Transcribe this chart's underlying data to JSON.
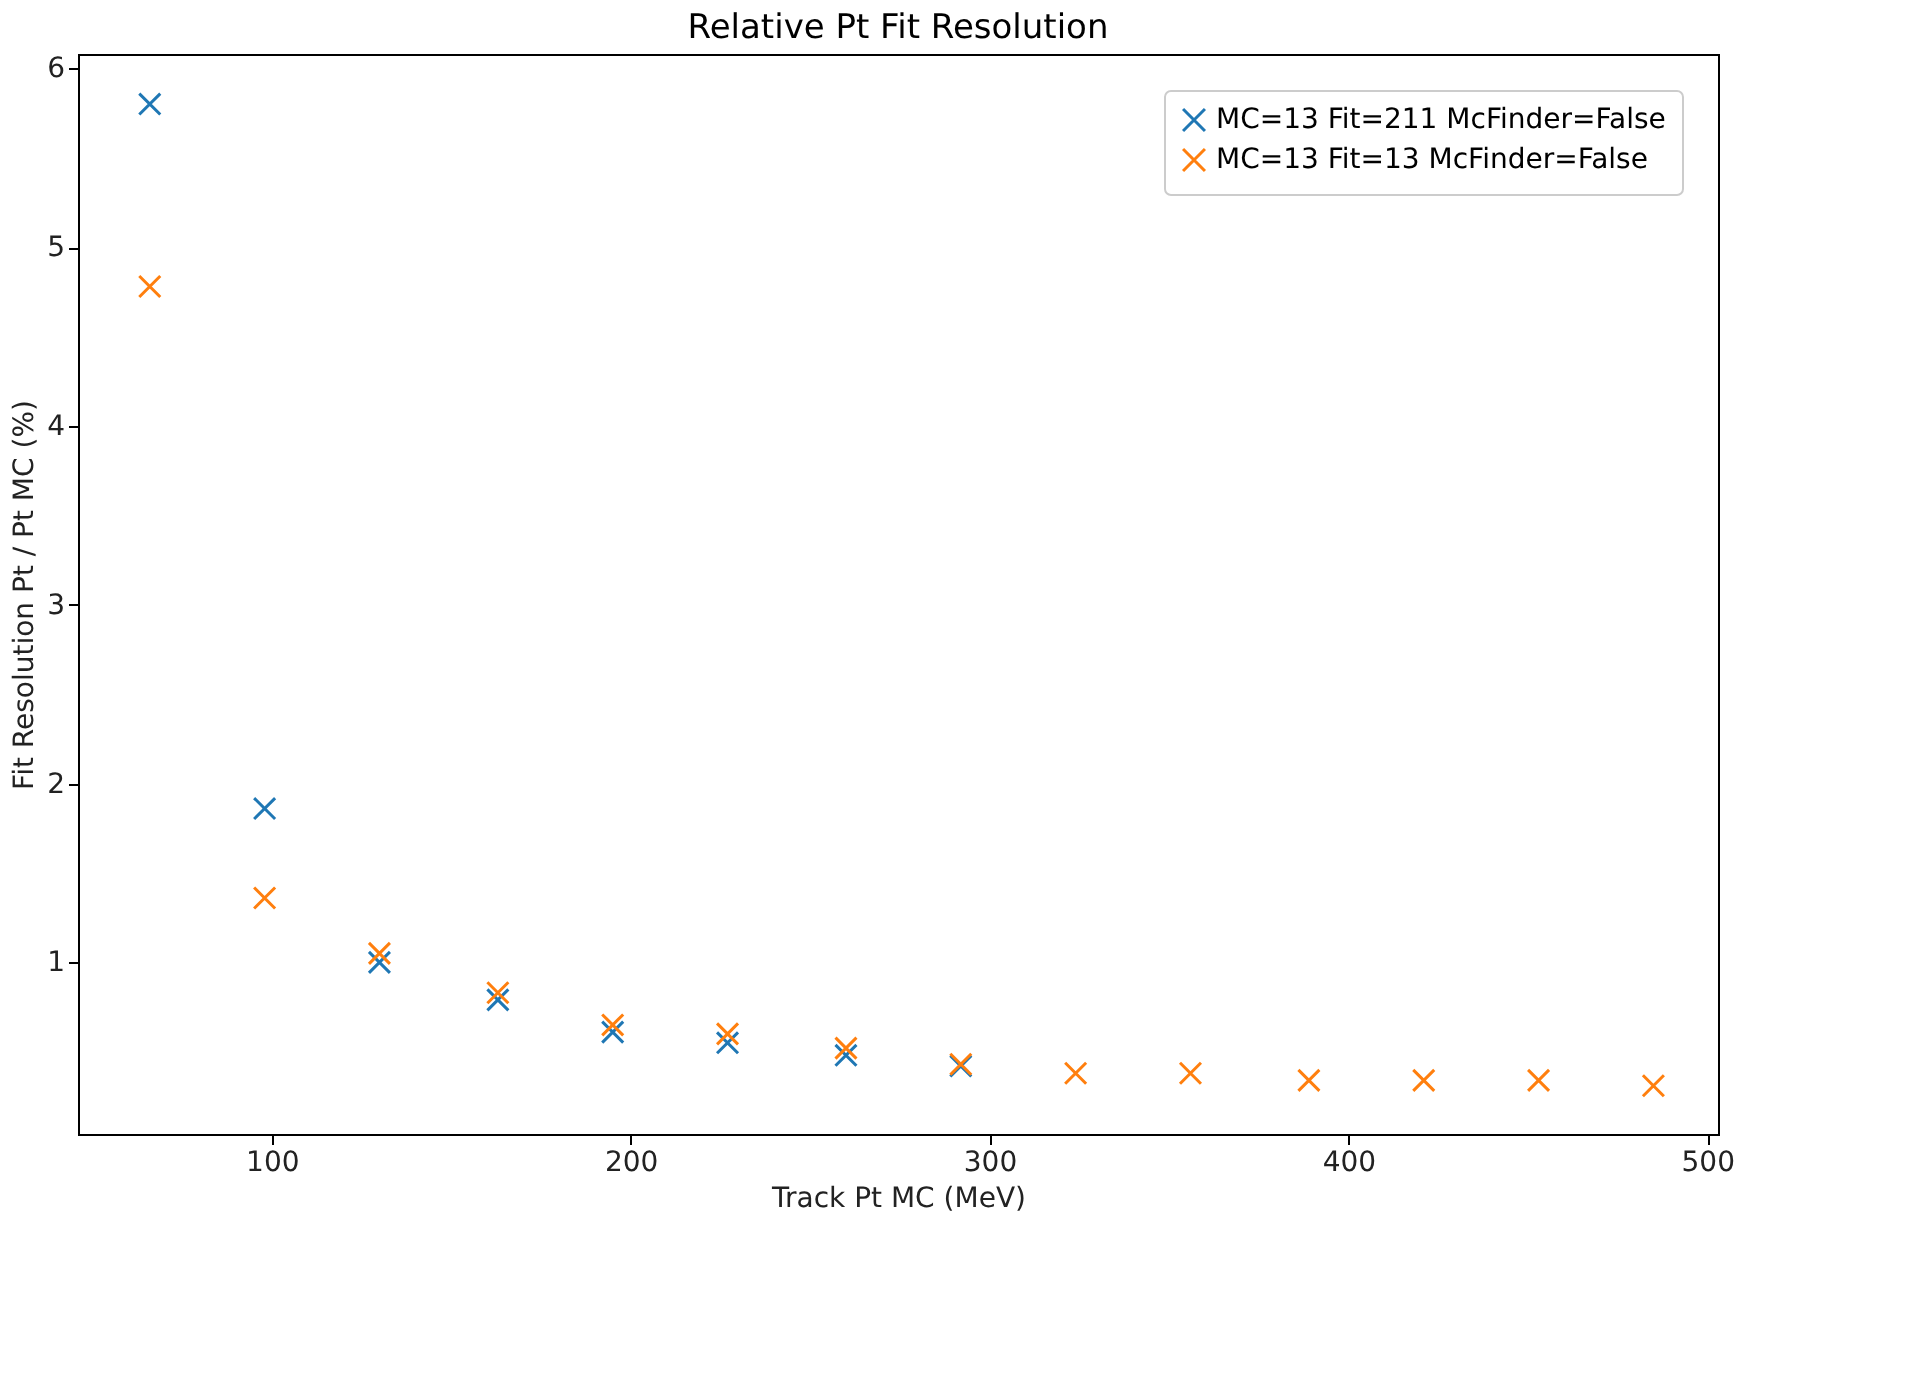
{
  "chart_data": {
    "type": "scatter",
    "title": "Relative Pt Fit Resolution",
    "xlabel": "Track Pt MC (MeV)",
    "ylabel": "Fit Resolution Pt / Pt MC (%)",
    "x": [
      66,
      98,
      130,
      163,
      195,
      227,
      260,
      292,
      324,
      356,
      389,
      421,
      453,
      485
    ],
    "series": [
      {
        "name": "MC=13 Fit=211 McFinder=False",
        "color": "#1f77b4",
        "values": [
          5.8,
          1.86,
          1.0,
          0.79,
          0.61,
          0.55,
          0.48,
          0.42,
          null,
          null,
          null,
          null,
          null,
          null
        ]
      },
      {
        "name": "MC=13 Fit=13 McFinder=False",
        "color": "#ff7f0e",
        "values": [
          4.78,
          1.36,
          1.05,
          0.83,
          0.65,
          0.6,
          0.52,
          0.43,
          0.38,
          0.38,
          0.34,
          0.34,
          0.34,
          0.31
        ]
      }
    ],
    "xlim": [
      46,
      503
    ],
    "xticks": [
      100,
      200,
      300,
      400,
      500
    ],
    "ylim": [
      0.04,
      6.08
    ],
    "yticks": [
      1,
      2,
      3,
      4,
      5,
      6
    ],
    "marker": "cross",
    "legend": "top right",
    "grid": false
  }
}
